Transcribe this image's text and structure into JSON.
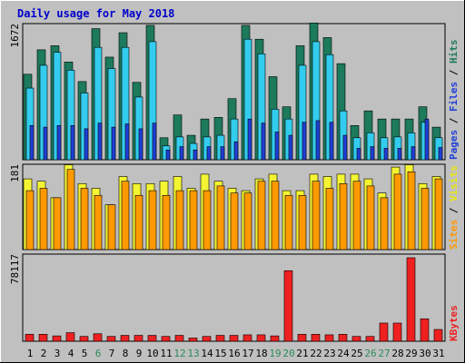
{
  "title": "Daily usage for May 2018",
  "colors": {
    "background": "#c0c0c0",
    "title": "#0000cc",
    "hits": "#1d7a5c",
    "files": "#33ccee",
    "pages": "#1f3fd8",
    "visits": "#f4f432",
    "sites": "#ff9900",
    "kbytes": "#ee2020",
    "day_weekday": "#000000",
    "day_weekend": "#2a8a5a"
  },
  "chart_data": [
    {
      "type": "bar",
      "panel": "hits-files-pages",
      "y_max_label": "1672",
      "ylim": [
        0,
        1672
      ],
      "legend": {
        "pages": "Pages",
        "files": "Files",
        "hits": "Hits",
        "sep1": " / ",
        "sep2": " / "
      },
      "categories": [
        "1",
        "2",
        "3",
        "4",
        "5",
        "6",
        "7",
        "8",
        "9",
        "10",
        "11",
        "12",
        "13",
        "14",
        "15",
        "16",
        "17",
        "18",
        "19",
        "20",
        "21",
        "22",
        "23",
        "24",
        "25",
        "26",
        "27",
        "28",
        "29",
        "30",
        "31"
      ],
      "series": [
        {
          "name": "Hits",
          "values": [
            1050,
            1350,
            1400,
            1200,
            960,
            1610,
            1260,
            1560,
            950,
            1650,
            270,
            550,
            300,
            500,
            520,
            750,
            1650,
            1480,
            1020,
            650,
            1400,
            1680,
            1500,
            1180,
            420,
            600,
            500,
            500,
            500,
            650,
            400
          ]
        },
        {
          "name": "Files",
          "values": [
            880,
            1160,
            1320,
            1100,
            820,
            1380,
            1120,
            1380,
            770,
            1450,
            170,
            280,
            200,
            280,
            300,
            500,
            1480,
            1300,
            620,
            500,
            1160,
            1450,
            1290,
            600,
            270,
            330,
            270,
            280,
            330,
            460,
            270
          ]
        },
        {
          "name": "Pages",
          "values": [
            420,
            400,
            420,
            420,
            380,
            450,
            400,
            440,
            380,
            450,
            120,
            160,
            120,
            160,
            160,
            220,
            500,
            450,
            340,
            300,
            460,
            480,
            460,
            300,
            140,
            160,
            140,
            140,
            160,
            500,
            150
          ]
        }
      ]
    },
    {
      "type": "bar",
      "panel": "visits-sites",
      "y_max_label": "181",
      "ylim": [
        0,
        181
      ],
      "legend": {
        "sites": "Sites",
        "visits": "Visits",
        "sep": " / "
      },
      "categories": [
        "1",
        "2",
        "3",
        "4",
        "5",
        "6",
        "7",
        "8",
        "9",
        "10",
        "11",
        "12",
        "13",
        "14",
        "15",
        "16",
        "17",
        "18",
        "19",
        "20",
        "21",
        "22",
        "23",
        "24",
        "25",
        "26",
        "27",
        "28",
        "29",
        "30",
        "31"
      ],
      "series": [
        {
          "name": "Visits",
          "values": [
            150,
            145,
            110,
            180,
            140,
            130,
            95,
            155,
            140,
            140,
            145,
            155,
            130,
            160,
            145,
            130,
            125,
            150,
            160,
            125,
            125,
            160,
            155,
            160,
            160,
            150,
            120,
            175,
            180,
            140,
            155
          ]
        },
        {
          "name": "Sites",
          "values": [
            125,
            130,
            110,
            170,
            130,
            115,
            95,
            145,
            115,
            125,
            115,
            125,
            125,
            125,
            135,
            120,
            120,
            145,
            145,
            115,
            115,
            145,
            130,
            140,
            145,
            135,
            110,
            160,
            165,
            130,
            150
          ]
        }
      ]
    },
    {
      "type": "bar",
      "panel": "kbytes",
      "y_max_label": "78117",
      "ylim": [
        0,
        78117
      ],
      "legend": {
        "kbytes": "KBytes"
      },
      "categories": [
        "1",
        "2",
        "3",
        "4",
        "5",
        "6",
        "7",
        "8",
        "9",
        "10",
        "11",
        "12",
        "13",
        "14",
        "15",
        "16",
        "17",
        "18",
        "19",
        "20",
        "21",
        "22",
        "23",
        "24",
        "25",
        "26",
        "27",
        "28",
        "29",
        "30",
        "31"
      ],
      "weekend_days": [
        6,
        12,
        13,
        19,
        20,
        26,
        27
      ],
      "series": [
        {
          "name": "KBytes",
          "values": [
            6500,
            6500,
            5000,
            8000,
            4500,
            7000,
            4500,
            5500,
            5500,
            5500,
            4500,
            5500,
            3000,
            4500,
            5500,
            5500,
            6000,
            6000,
            5000,
            66000,
            6500,
            6500,
            6000,
            6500,
            4500,
            4500,
            17000,
            17000,
            78117,
            21000,
            11000
          ]
        }
      ]
    }
  ]
}
